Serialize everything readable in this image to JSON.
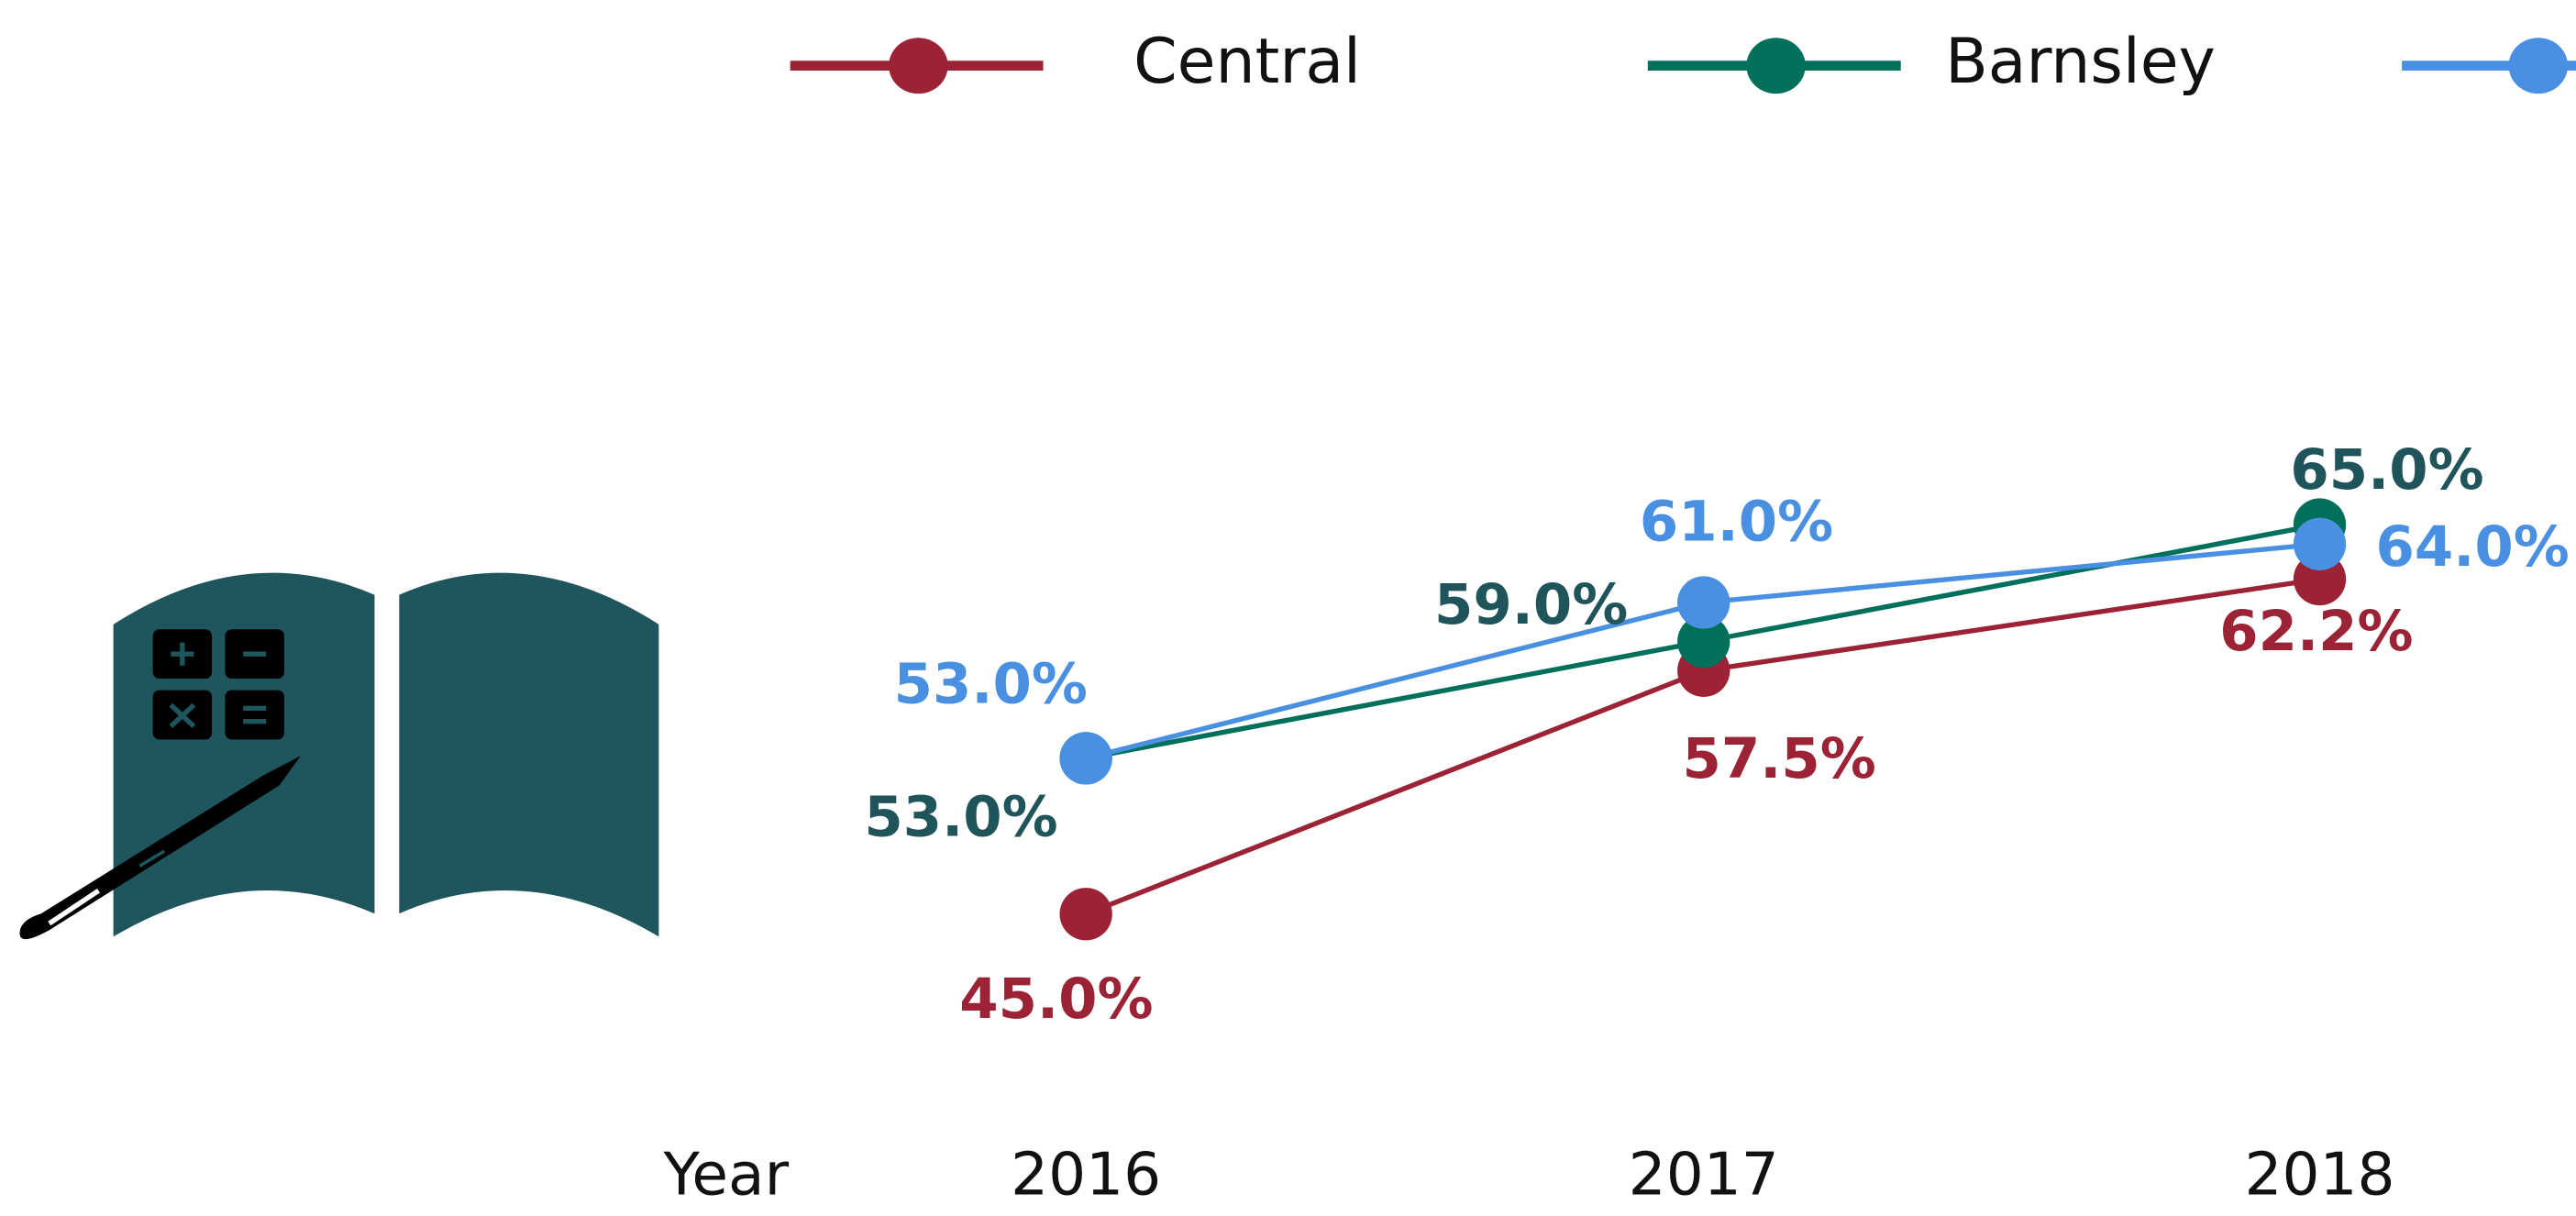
{
  "chart_data": {
    "type": "line",
    "x_label": "Year",
    "categories": [
      "2016",
      "2017",
      "2018"
    ],
    "series": [
      {
        "name": "Central",
        "color": "#9b2335",
        "label_color": "#9b2335",
        "values": [
          45.0,
          57.5,
          62.2
        ],
        "value_labels": [
          "45.0%",
          "57.5%",
          "62.2%"
        ]
      },
      {
        "name": "Barnsley",
        "color": "#00705a",
        "label_color": "#1f545b",
        "values": [
          53.0,
          59.0,
          65.0
        ],
        "value_labels": [
          "53.0%",
          "59.0%",
          "65.0%"
        ]
      },
      {
        "color": "#4a90e2",
        "label_color": "#4a90e2",
        "values": [
          53.0,
          61.0,
          64.0
        ],
        "value_labels": [
          "53.0%",
          "61.0%",
          "64.0%"
        ]
      }
    ]
  }
}
